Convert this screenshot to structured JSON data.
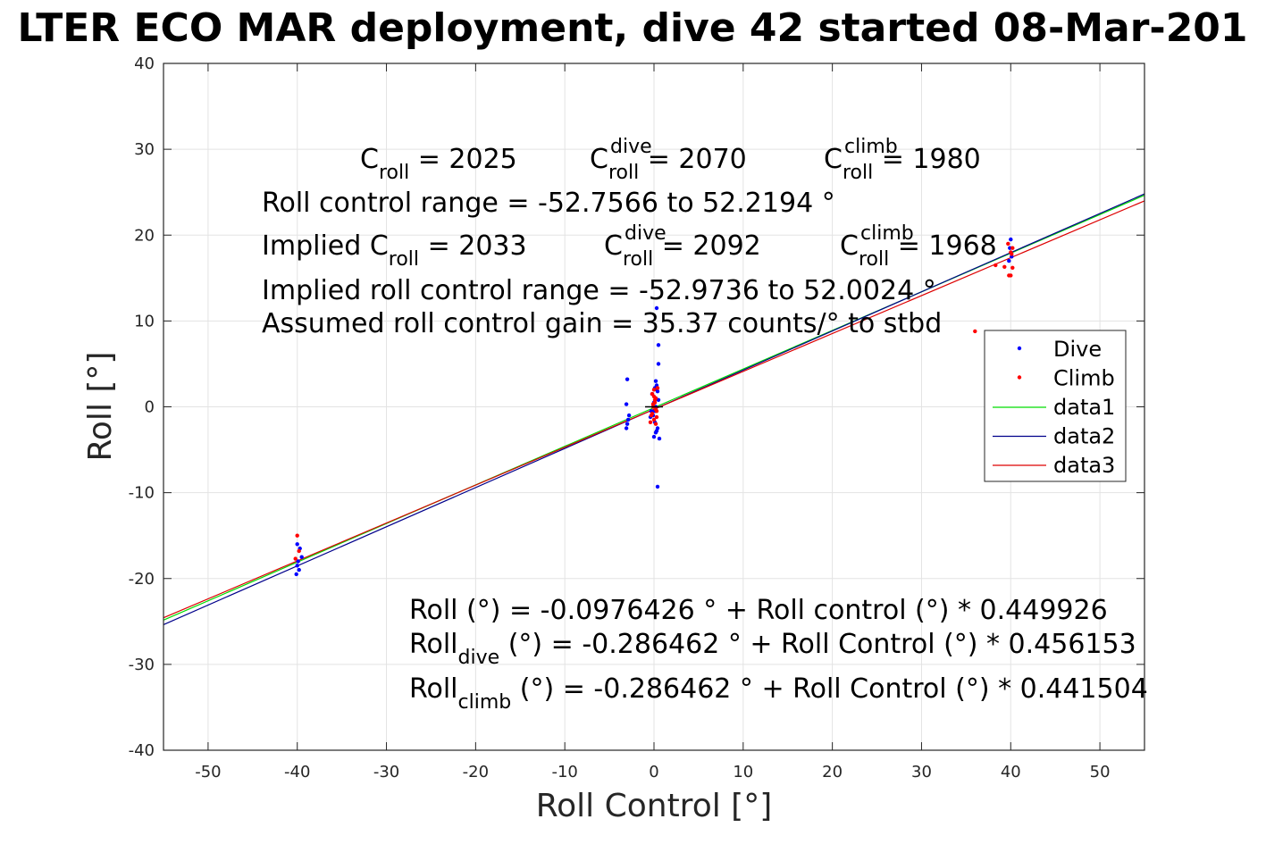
{
  "chart_data": {
    "type": "scatter",
    "title": "LTER ECO MAR deployment, dive 42 started 08-Mar-201",
    "xlabel": "Roll Control [°]",
    "ylabel": "Roll [°]",
    "xlim": [
      -55,
      55
    ],
    "ylim": [
      -40,
      40
    ],
    "xticks": [
      -50,
      -40,
      -30,
      -20,
      -10,
      0,
      10,
      20,
      30,
      40,
      50
    ],
    "yticks": [
      -40,
      -30,
      -20,
      -10,
      0,
      10,
      20,
      30,
      40
    ],
    "grid": true,
    "legend_position": "right",
    "colors": {
      "dive": "#0000ff",
      "climb": "#ff0000",
      "data1": "#00dd00",
      "data2": "#00008b",
      "data3": "#dd0000"
    },
    "series": [
      {
        "name": "Dive",
        "kind": "points",
        "x": [
          -40,
          -40,
          -39.8,
          -40.1,
          -39.9,
          -39.5,
          -39.7,
          -3,
          -3.1,
          -2.9,
          -3,
          -3.1,
          -2.8,
          0,
          0.2,
          -0.2,
          0.3,
          0.1,
          -0.1,
          0.4,
          0.2,
          0,
          0.3,
          0.5,
          0.5,
          0.3,
          0.2,
          0.1,
          0.4,
          0.3,
          0.6,
          0.4,
          0.2,
          -0.3,
          0.5,
          0.1,
          -0.4,
          39.9,
          40,
          40.1,
          39.8
        ],
        "y": [
          -16,
          -18.5,
          -19,
          -19.5,
          -18,
          -17.5,
          -16.5,
          3.2,
          0.3,
          -1.5,
          -2,
          -2.5,
          -1,
          0.5,
          1,
          1.5,
          2,
          -0.5,
          -1,
          -2.5,
          -3,
          -3.5,
          2.5,
          5,
          7.2,
          11.5,
          0,
          -1.8,
          1.8,
          -2.8,
          -3.7,
          -9.3,
          3,
          -0.5,
          0.8,
          2.2,
          -1.2,
          18.5,
          19.5,
          17.5,
          17
        ],
        "color": "#0000ff"
      },
      {
        "name": "Climb",
        "kind": "points",
        "x": [
          -40,
          -39.8,
          -40.2,
          0,
          -0.2,
          0.2,
          0.1,
          -0.1,
          0.3,
          -0.3,
          0,
          0.2,
          0.4,
          -0.4,
          0.1,
          -0.2,
          0,
          0.3,
          -0.1,
          0.2,
          36,
          38.3,
          39.3,
          39.8,
          40,
          40.2,
          39.7,
          40,
          40.2,
          40.1
        ],
        "y": [
          -15,
          -16.8,
          -17.7,
          2,
          1.5,
          1,
          0.5,
          0,
          -0.5,
          -1,
          -1.5,
          -2,
          2.2,
          -1.8,
          0.8,
          -0.8,
          1.2,
          -1.2,
          0.3,
          -0.3,
          8.8,
          16.5,
          16.3,
          15.3,
          18,
          18.5,
          19,
          15.3,
          16.2,
          17.8
        ],
        "color": "#ff0000"
      },
      {
        "name": "data1",
        "kind": "line",
        "x": [
          -55,
          55
        ],
        "y": [
          -24.84,
          24.65
        ],
        "color": "#00dd00"
      },
      {
        "name": "data2",
        "kind": "line",
        "x": [
          -55,
          55
        ],
        "y": [
          -25.37,
          24.8
        ],
        "color": "#00008b"
      },
      {
        "name": "data3",
        "kind": "line",
        "x": [
          -55,
          55
        ],
        "y": [
          -24.57,
          23.99
        ],
        "color": "#dd0000"
      }
    ],
    "annotations": {
      "c_roll": {
        "base": "C",
        "sub": "roll",
        "value": " = 2025"
      },
      "c_roll_dive": {
        "base": "C",
        "sup": "dive",
        "sub": "roll",
        "value": " = 2070"
      },
      "c_roll_climb": {
        "base": "C",
        "sup": "climb",
        "sub": "roll",
        "value": " = 1980"
      },
      "roll_control_range": "Roll control range = -52.7566 to 52.2194 °",
      "implied_prefix": "Implied C",
      "implied_sub": "roll",
      "implied_value": " = 2033",
      "implied_dive": {
        "base": "C",
        "sup": "dive",
        "sub": "roll",
        "value": " = 2092"
      },
      "implied_climb": {
        "base": "C",
        "sup": "climb",
        "sub": "roll",
        "value": " = 1968"
      },
      "implied_range": "Implied roll control range = -52.9736 to 52.0024 °",
      "gain": "Assumed roll control gain = 35.37 counts/° to stbd",
      "eq_all": "Roll (°) = -0.0976426 ° + Roll control (°) * 0.449926",
      "eq_dive_base": "Roll",
      "eq_dive_sub": "dive",
      "eq_dive_rest": " (°) = -0.286462 ° + Roll Control (°) * 0.456153",
      "eq_climb_base": "Roll",
      "eq_climb_sub": "climb",
      "eq_climb_rest": " (°) = -0.286462 ° + Roll Control (°) * 0.441504"
    }
  }
}
